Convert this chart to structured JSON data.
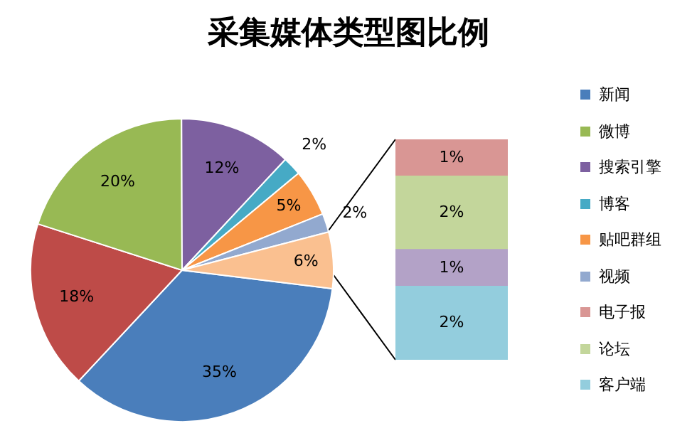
{
  "chart_data": [
    {
      "type": "pie",
      "title": "采集媒体类型图比例",
      "categories": [
        "新闻",
        null,
        "微博",
        "搜索引擎",
        "博客",
        "贴吧群组",
        "视频",
        null
      ],
      "values": [
        35,
        18,
        20,
        12,
        2,
        5,
        2,
        6
      ],
      "value_labels": [
        "35%",
        "18%",
        "20%",
        "12%",
        "2%",
        "5%",
        "2%",
        "6%"
      ],
      "colors": [
        "#4a7ebb",
        "#be4b48",
        "#98b954",
        "#7d60a0",
        "#46aac5",
        "#f79646",
        "#92a9cf",
        "#fac090"
      ],
      "legend": "right"
    },
    {
      "type": "bar",
      "stacked": true,
      "categories": [
        null
      ],
      "series": [
        {
          "name": "客户端",
          "color": "#93cddd",
          "values": [
            2
          ],
          "value_labels": [
            "2%"
          ]
        },
        {
          "color": "#b3a2c7",
          "values": [
            1
          ],
          "value_labels": [
            "1%"
          ]
        },
        {
          "name": "论坛",
          "color": "#c3d69b",
          "values": [
            2
          ],
          "value_labels": [
            "2%"
          ]
        },
        {
          "name": "电子报",
          "color": "#d99694",
          "values": [
            1
          ],
          "value_labels": [
            "1%"
          ]
        }
      ],
      "ylim": [
        0,
        6
      ],
      "tick_labels": false,
      "legend": "right"
    }
  ]
}
